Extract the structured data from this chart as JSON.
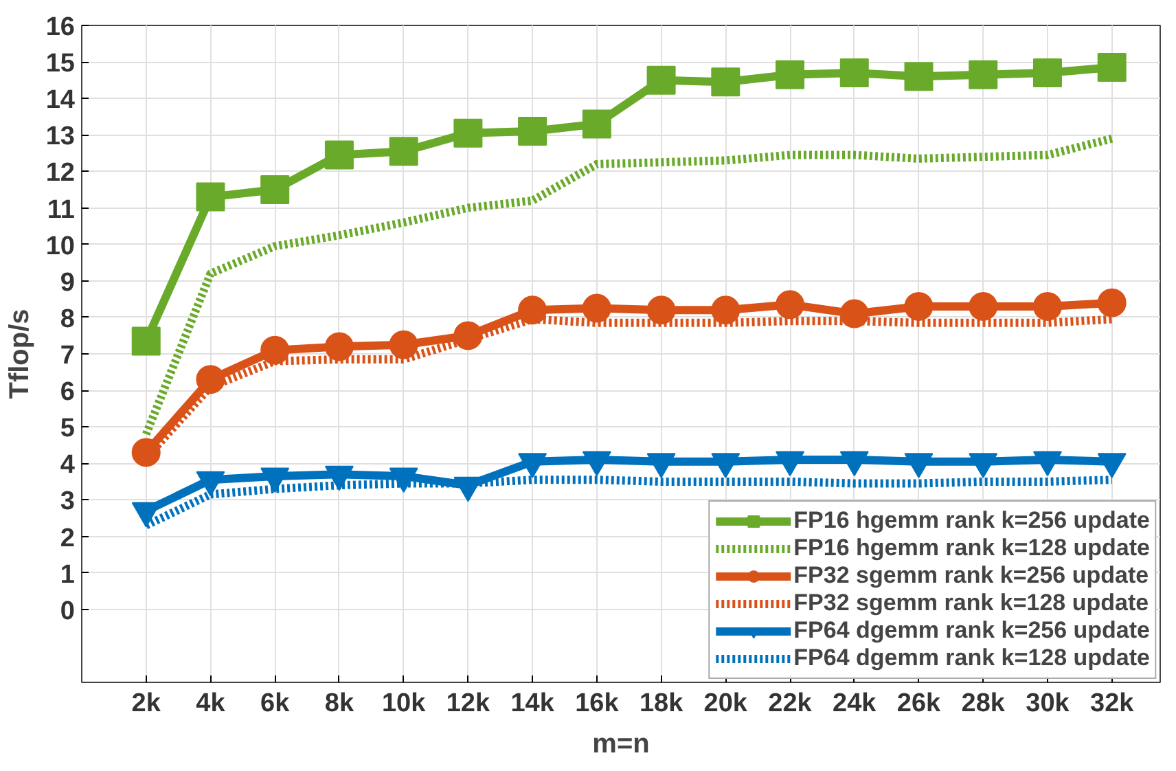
{
  "chart_data": {
    "type": "line",
    "xlabel": "m=n",
    "ylabel": "Tflop/s",
    "x": [
      2,
      4,
      6,
      8,
      10,
      12,
      14,
      16,
      18,
      20,
      22,
      24,
      26,
      28,
      30,
      32
    ],
    "xlim": [
      0,
      33.5
    ],
    "xticks": [
      {
        "value": 2,
        "label": "2k"
      },
      {
        "value": 4,
        "label": "4k"
      },
      {
        "value": 6,
        "label": "6k"
      },
      {
        "value": 8,
        "label": "8k"
      },
      {
        "value": 10,
        "label": "10k"
      },
      {
        "value": 12,
        "label": "12k"
      },
      {
        "value": 14,
        "label": "14k"
      },
      {
        "value": 16,
        "label": "16k"
      },
      {
        "value": 18,
        "label": "18k"
      },
      {
        "value": 20,
        "label": "20k"
      },
      {
        "value": 22,
        "label": "22k"
      },
      {
        "value": 24,
        "label": "24k"
      },
      {
        "value": 26,
        "label": "26k"
      },
      {
        "value": 28,
        "label": "28k"
      },
      {
        "value": 30,
        "label": "30k"
      },
      {
        "value": 32,
        "label": "32k"
      }
    ],
    "ylim": [
      -2,
      16
    ],
    "yticks": [
      0,
      1,
      2,
      3,
      4,
      5,
      6,
      7,
      8,
      9,
      10,
      11,
      12,
      13,
      14,
      15,
      16
    ],
    "grid": true,
    "legend": "bottom right",
    "series": [
      {
        "name": "FP16 hgemm rank k=256 update",
        "color": "#6aaa2a",
        "marker": "square",
        "line_style": "solid",
        "values": [
          7.35,
          11.3,
          11.5,
          12.45,
          12.55,
          13.05,
          13.1,
          13.3,
          14.5,
          14.45,
          14.65,
          14.7,
          14.6,
          14.65,
          14.7,
          14.85
        ]
      },
      {
        "name": "FP16 hgemm rank k=128 update",
        "color": "#6aaa2a",
        "marker": "none",
        "line_style": "dotted",
        "values": [
          4.8,
          9.2,
          9.95,
          10.25,
          10.6,
          11.0,
          11.2,
          12.2,
          12.25,
          12.3,
          12.45,
          12.45,
          12.35,
          12.4,
          12.45,
          12.9
        ]
      },
      {
        "name": "FP32 sgemm rank k=256 update",
        "color": "#d95319",
        "marker": "circle",
        "line_style": "solid",
        "values": [
          4.3,
          6.3,
          7.1,
          7.2,
          7.25,
          7.5,
          8.2,
          8.25,
          8.2,
          8.2,
          8.35,
          8.1,
          8.3,
          8.3,
          8.3,
          8.4
        ]
      },
      {
        "name": "FP32 sgemm rank k=128 update",
        "color": "#d95319",
        "marker": "none",
        "line_style": "dotted",
        "values": [
          4.15,
          6.1,
          6.8,
          6.85,
          6.85,
          7.4,
          7.95,
          7.85,
          7.85,
          7.85,
          7.9,
          7.9,
          7.85,
          7.85,
          7.85,
          7.95
        ]
      },
      {
        "name": "FP64 dgemm rank k=256 update",
        "color": "#0072bd",
        "marker": "triangle",
        "line_style": "solid",
        "values": [
          2.7,
          3.55,
          3.65,
          3.7,
          3.65,
          3.4,
          4.05,
          4.1,
          4.05,
          4.05,
          4.1,
          4.1,
          4.05,
          4.05,
          4.1,
          4.05
        ]
      },
      {
        "name": "FP64 dgemm rank k=128 update",
        "color": "#0072bd",
        "marker": "none",
        "line_style": "dotted",
        "values": [
          2.3,
          3.15,
          3.3,
          3.4,
          3.45,
          3.45,
          3.55,
          3.55,
          3.5,
          3.5,
          3.5,
          3.45,
          3.45,
          3.5,
          3.5,
          3.55
        ]
      }
    ]
  }
}
